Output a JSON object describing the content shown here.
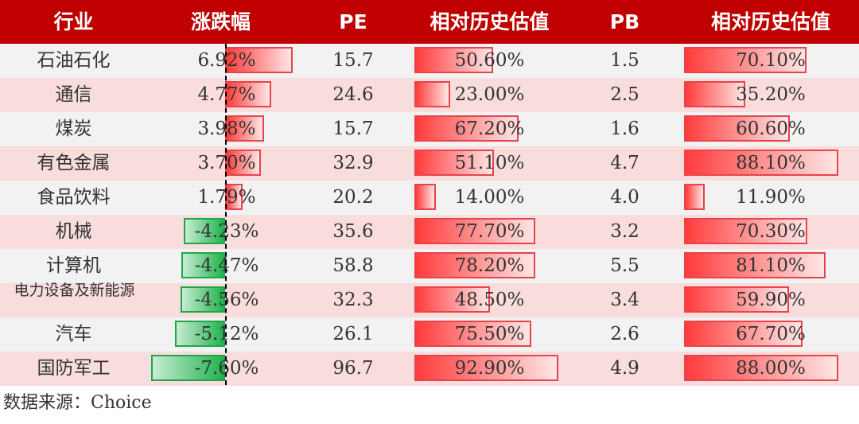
{
  "table": {
    "headers": [
      "行业",
      "涨跌幅",
      "PE",
      "相对历史估值",
      "PB",
      "相对历史估值"
    ]
  },
  "chart_data": {
    "type": "table",
    "columns": [
      "行业",
      "涨跌幅",
      "PE",
      "相对历史估值",
      "PB",
      "相对历史估值"
    ],
    "rows": [
      {
        "industry": "石油石化",
        "change": "6.92%",
        "change_value": 6.92,
        "pe": "15.7",
        "pe_rel": "50.60%",
        "pe_rel_value": 50.6,
        "pb": "1.5",
        "pb_rel": "70.10%",
        "pb_rel_value": 70.1
      },
      {
        "industry": "通信",
        "change": "4.77%",
        "change_value": 4.77,
        "pe": "24.6",
        "pe_rel": "23.00%",
        "pe_rel_value": 23.0,
        "pb": "2.5",
        "pb_rel": "35.20%",
        "pb_rel_value": 35.2
      },
      {
        "industry": "煤炭",
        "change": "3.98%",
        "change_value": 3.98,
        "pe": "15.7",
        "pe_rel": "67.20%",
        "pe_rel_value": 67.2,
        "pb": "1.6",
        "pb_rel": "60.60%",
        "pb_rel_value": 60.6
      },
      {
        "industry": "有色金属",
        "change": "3.70%",
        "change_value": 3.7,
        "pe": "32.9",
        "pe_rel": "51.10%",
        "pe_rel_value": 51.1,
        "pb": "4.7",
        "pb_rel": "88.10%",
        "pb_rel_value": 88.1
      },
      {
        "industry": "食品饮料",
        "change": "1.79%",
        "change_value": 1.79,
        "pe": "20.2",
        "pe_rel": "14.00%",
        "pe_rel_value": 14.0,
        "pb": "4.0",
        "pb_rel": "11.90%",
        "pb_rel_value": 11.9
      },
      {
        "industry": "机械",
        "change": "-4.23%",
        "change_value": -4.23,
        "pe": "35.6",
        "pe_rel": "77.70%",
        "pe_rel_value": 77.7,
        "pb": "3.2",
        "pb_rel": "70.30%",
        "pb_rel_value": 70.3
      },
      {
        "industry": "计算机",
        "change": "-4.47%",
        "change_value": -4.47,
        "pe": "58.8",
        "pe_rel": "78.20%",
        "pe_rel_value": 78.2,
        "pb": "5.5",
        "pb_rel": "81.10%",
        "pb_rel_value": 81.1
      },
      {
        "industry": "电力设备及新能源",
        "change": "-4.56%",
        "change_value": -4.56,
        "pe": "32.3",
        "pe_rel": "48.50%",
        "pe_rel_value": 48.5,
        "pb": "3.4",
        "pb_rel": "59.90%",
        "pb_rel_value": 59.9
      },
      {
        "industry": "汽车",
        "change": "-5.12%",
        "change_value": -5.12,
        "pe": "26.1",
        "pe_rel": "75.50%",
        "pe_rel_value": 75.5,
        "pb": "2.6",
        "pb_rel": "67.70%",
        "pb_rel_value": 67.7
      },
      {
        "industry": "国防军工",
        "change": "-7.60%",
        "change_value": -7.6,
        "pe": "96.7",
        "pe_rel": "92.90%",
        "pe_rel_value": 92.9,
        "pb": "4.9",
        "pb_rel": "88.00%",
        "pb_rel_value": 88.0
      }
    ]
  },
  "source": "数据来源：Choice",
  "colors": {
    "header_bg": "#c00000",
    "row_odd": "#f2f2f2",
    "row_even": "#f9dcdc",
    "positive_bar": "#ff3b3b",
    "negative_bar": "#21b34e"
  }
}
